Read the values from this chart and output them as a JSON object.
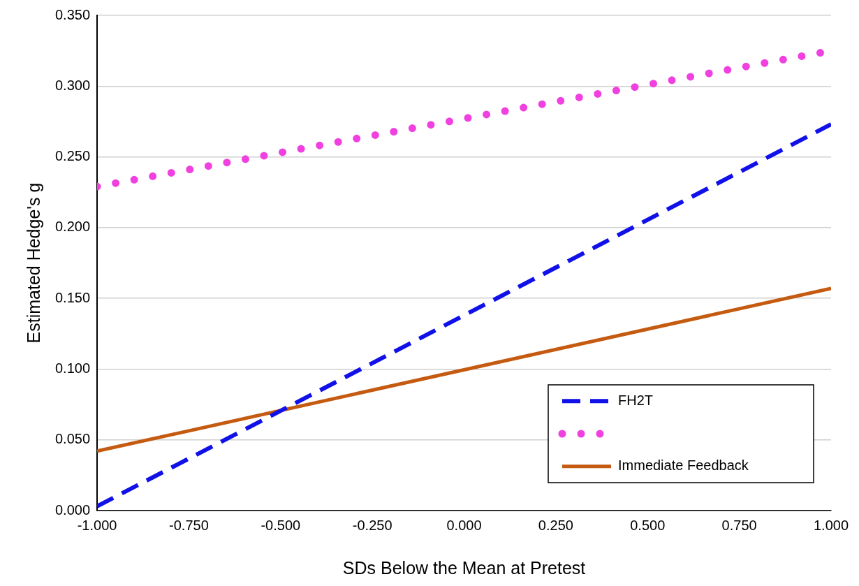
{
  "chart_data": {
    "type": "line",
    "xlabel": "SDs Below the Mean at Pretest",
    "ylabel": "Estimated Hedge's g",
    "xlim": [
      -1,
      1
    ],
    "ylim": [
      0,
      0.35
    ],
    "xticks": [
      {
        "value": -1,
        "label": "-1.000"
      },
      {
        "value": -0.75,
        "label": "-0.750"
      },
      {
        "value": -0.5,
        "label": "-0.500"
      },
      {
        "value": -0.25,
        "label": "-0.250"
      },
      {
        "value": 0,
        "label": "0.000"
      },
      {
        "value": 0.25,
        "label": "0.250"
      },
      {
        "value": 0.5,
        "label": "0.500"
      },
      {
        "value": 0.75,
        "label": "0.750"
      },
      {
        "value": 1,
        "label": "1.000"
      }
    ],
    "yticks": [
      {
        "value": 0,
        "label": "0.000"
      },
      {
        "value": 0.05,
        "label": "0.050"
      },
      {
        "value": 0.1,
        "label": "0.100"
      },
      {
        "value": 0.15,
        "label": "0.150"
      },
      {
        "value": 0.2,
        "label": "0.200"
      },
      {
        "value": 0.25,
        "label": "0.250"
      },
      {
        "value": 0.3,
        "label": "0.300"
      },
      {
        "value": 0.35,
        "label": "0.350"
      }
    ],
    "x": [
      -1,
      1
    ],
    "grid": "y",
    "legend": "bottom right",
    "marker": "none",
    "series": [
      {
        "name": "FH2T",
        "color": "#1010e8",
        "values": [
          0.003,
          0.273
        ],
        "line_style": "dashed"
      },
      {
        "color": "#f040e0",
        "values": [
          0.229,
          0.325
        ],
        "line_style": "dotted"
      },
      {
        "name": "Immediate Feedback",
        "color": "#c55a11",
        "values": [
          0.042,
          0.157
        ],
        "line_style": "solid"
      }
    ]
  }
}
